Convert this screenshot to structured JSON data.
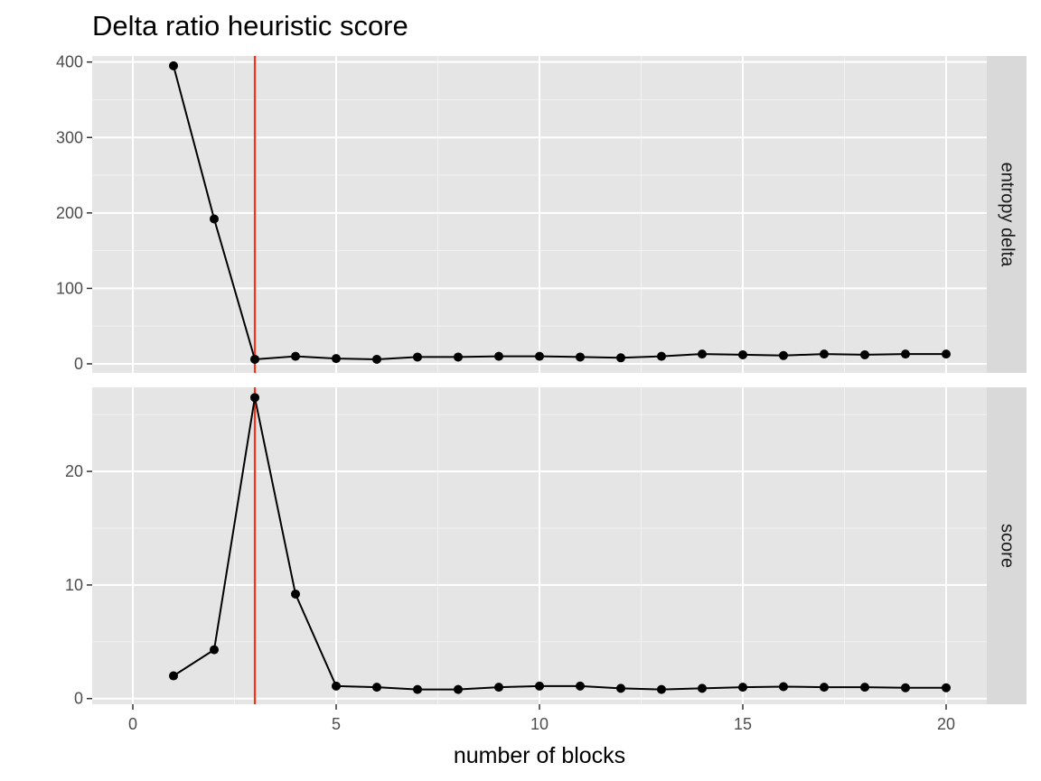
{
  "chart_data": {
    "type": "line",
    "title": "Delta ratio heuristic score",
    "xlabel": "number of blocks",
    "ylabel": "",
    "xlim": [
      -1,
      21
    ],
    "x_ticks": [
      0,
      5,
      10,
      15,
      20
    ],
    "x_tick_labels": [
      "0",
      "5",
      "10",
      "15",
      "20"
    ],
    "vline": {
      "x": 3,
      "color": "#f8331a"
    },
    "panel_background": "#e5e5e5",
    "strip_background": "#d9d9d9",
    "line_color": "#000000",
    "grid": true,
    "facets": [
      {
        "strip": "entropy delta",
        "ylim": [
          -12,
          408
        ],
        "y_ticks": [
          0,
          100,
          200,
          300,
          400
        ],
        "y_tick_labels": [
          "0",
          "100",
          "200",
          "300",
          "400"
        ],
        "x": [
          1,
          2,
          3,
          4,
          5,
          6,
          7,
          8,
          9,
          10,
          11,
          12,
          13,
          14,
          15,
          16,
          17,
          18,
          19,
          20
        ],
        "y": [
          395,
          192,
          6,
          10,
          7,
          6,
          9,
          9,
          10,
          10,
          9,
          8,
          10,
          13,
          12,
          11,
          13,
          12,
          13,
          13
        ]
      },
      {
        "strip": "score",
        "ylim": [
          -0.5,
          27.4
        ],
        "y_ticks": [
          0,
          10,
          20
        ],
        "y_tick_labels": [
          "0",
          "10",
          "20"
        ],
        "x": [
          1,
          2,
          3,
          4,
          5,
          6,
          7,
          8,
          9,
          10,
          11,
          12,
          13,
          14,
          15,
          16,
          17,
          18,
          19,
          20
        ],
        "y": [
          2.0,
          4.3,
          26.5,
          9.2,
          1.1,
          1.0,
          0.8,
          0.8,
          1.0,
          1.1,
          1.1,
          0.9,
          0.8,
          0.9,
          1.0,
          1.05,
          1.0,
          1.0,
          0.95,
          0.95
        ]
      }
    ]
  }
}
